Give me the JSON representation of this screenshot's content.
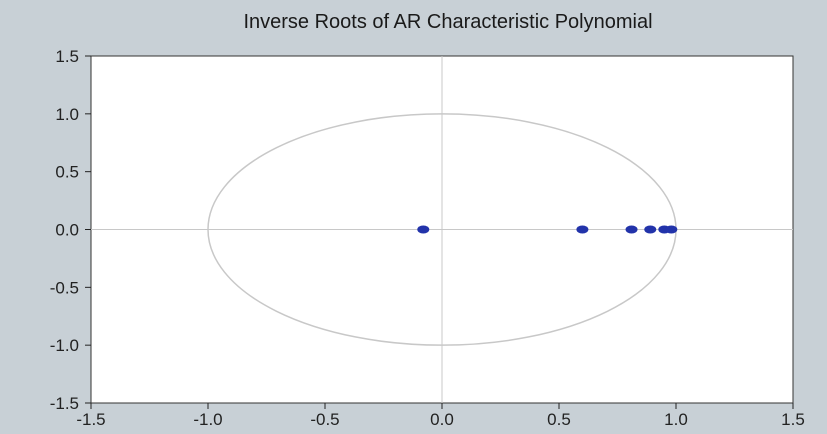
{
  "chart_data": {
    "type": "scatter",
    "title": "Inverse Roots of AR Characteristic Polynomial",
    "xlabel": "",
    "ylabel": "",
    "xlim": [
      -1.5,
      1.5
    ],
    "ylim": [
      -1.5,
      1.5
    ],
    "x_ticks": [
      "-1.5",
      "-1.0",
      "-0.5",
      "0.0",
      "0.5",
      "1.0",
      "1.5"
    ],
    "y_ticks": [
      "1.5",
      "1.0",
      "0.5",
      "0.0",
      "-0.5",
      "-1.0",
      "-1.5"
    ],
    "unit_circle": true,
    "reference_lines": [
      "x=0",
      "y=0"
    ],
    "grid": false,
    "points": [
      {
        "x": -0.08,
        "y": 0.0
      },
      {
        "x": 0.6,
        "y": 0.0
      },
      {
        "x": 0.81,
        "y": 0.0
      },
      {
        "x": 0.89,
        "y": 0.0
      },
      {
        "x": 0.95,
        "y": 0.0
      },
      {
        "x": 0.98,
        "y": 0.0
      }
    ],
    "colors": {
      "points": "#2233aa",
      "frame_background": "#c8d0d6",
      "plot_background": "#ffffff",
      "circle": "#c8c8c8",
      "axes": "#222222"
    }
  }
}
